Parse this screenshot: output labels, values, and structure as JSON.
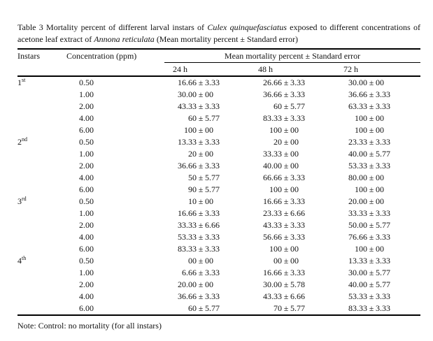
{
  "title": {
    "segments": [
      {
        "text": "Table 3 Mortality percent of different larval instars of ",
        "italic": false
      },
      {
        "text": "Culex quinquefasciatus",
        "italic": true
      },
      {
        "text": " exposed to different concentrations of acetone leaf extract of ",
        "italic": false
      },
      {
        "text": "Annona reticulata",
        "italic": true
      },
      {
        "text": " (Mean mortality percent ± Standard error)",
        "italic": false
      }
    ]
  },
  "table": {
    "headers": {
      "instars": "Instars",
      "concentration": "Concentration (ppm)",
      "span": "Mean mortality percent ± Standard error",
      "time": [
        "24 h",
        "48 h",
        "72 h"
      ]
    },
    "groups": [
      {
        "instar": "1",
        "ordinal": "st",
        "rows": [
          {
            "conc": "0.50",
            "h24": "16.66±3.33",
            "h48": "26.66±3.33",
            "h72": "30.00±00"
          },
          {
            "conc": "1.00",
            "h24": "30.00±00",
            "h48": "36.66±3.33",
            "h72": "36.66±3.33"
          },
          {
            "conc": "2.00",
            "h24": "43.33±3.33",
            "h48": "60±5.77",
            "h72": "63.33±3.33"
          },
          {
            "conc": "4.00",
            "h24": "60±5.77",
            "h48": "83.33±3.33",
            "h72": "100±00"
          },
          {
            "conc": "6.00",
            "h24": "100±00",
            "h48": "100±00",
            "h72": "100±00"
          }
        ]
      },
      {
        "instar": "2",
        "ordinal": "nd",
        "rows": [
          {
            "conc": "0.50",
            "h24": "13.33±3.33",
            "h48": "20±00",
            "h72": "23.33±3.33"
          },
          {
            "conc": "1.00",
            "h24": "20±00",
            "h48": "33.33±00",
            "h72": "40.00±5.77"
          },
          {
            "conc": "2.00",
            "h24": "36.66±3.33",
            "h48": "40.00±00",
            "h72": "53.33±3.33"
          },
          {
            "conc": "4.00",
            "h24": "50±5.77",
            "h48": "66.66±3.33",
            "h72": "80.00±00"
          },
          {
            "conc": "6.00",
            "h24": "90±5.77",
            "h48": "100±00",
            "h72": "100±00"
          }
        ]
      },
      {
        "instar": "3",
        "ordinal": "rd",
        "rows": [
          {
            "conc": "0.50",
            "h24": "10±00",
            "h48": "16.66±3.33",
            "h72": "20.00±00"
          },
          {
            "conc": "1.00",
            "h24": "16.66±3.33",
            "h48": "23.33±6.66",
            "h72": "33.33±3.33"
          },
          {
            "conc": "2.00",
            "h24": "33.33±6.66",
            "h48": "43.33±3.33",
            "h72": "50.00±5.77"
          },
          {
            "conc": "4.00",
            "h24": "53.33±3.33",
            "h48": "56.66±3.33",
            "h72": "76.66±3.33"
          },
          {
            "conc": "6.00",
            "h24": "83.33±3.33",
            "h48": "100±00",
            "h72": "100±00"
          }
        ]
      },
      {
        "instar": "4",
        "ordinal": "th",
        "rows": [
          {
            "conc": "0.50",
            "h24": "00±00",
            "h48": "00±00",
            "h72": "13.33±3.33"
          },
          {
            "conc": "1.00",
            "h24": "6.66±3.33",
            "h48": "16.66±3.33",
            "h72": "30.00±5.77"
          },
          {
            "conc": "2.00",
            "h24": "20.00±00",
            "h48": "30.00±5.78",
            "h72": "40.00±5.77"
          },
          {
            "conc": "4.00",
            "h24": "36.66±3.33",
            "h48": "43.33±6.66",
            "h72": "53.33±3.33"
          },
          {
            "conc": "6.00",
            "h24": "60±5.77",
            "h48": "70±5.77",
            "h72": "83.33±3.33"
          }
        ]
      }
    ]
  },
  "note": {
    "text": "Note: Control: no mortality (for all instars)"
  }
}
